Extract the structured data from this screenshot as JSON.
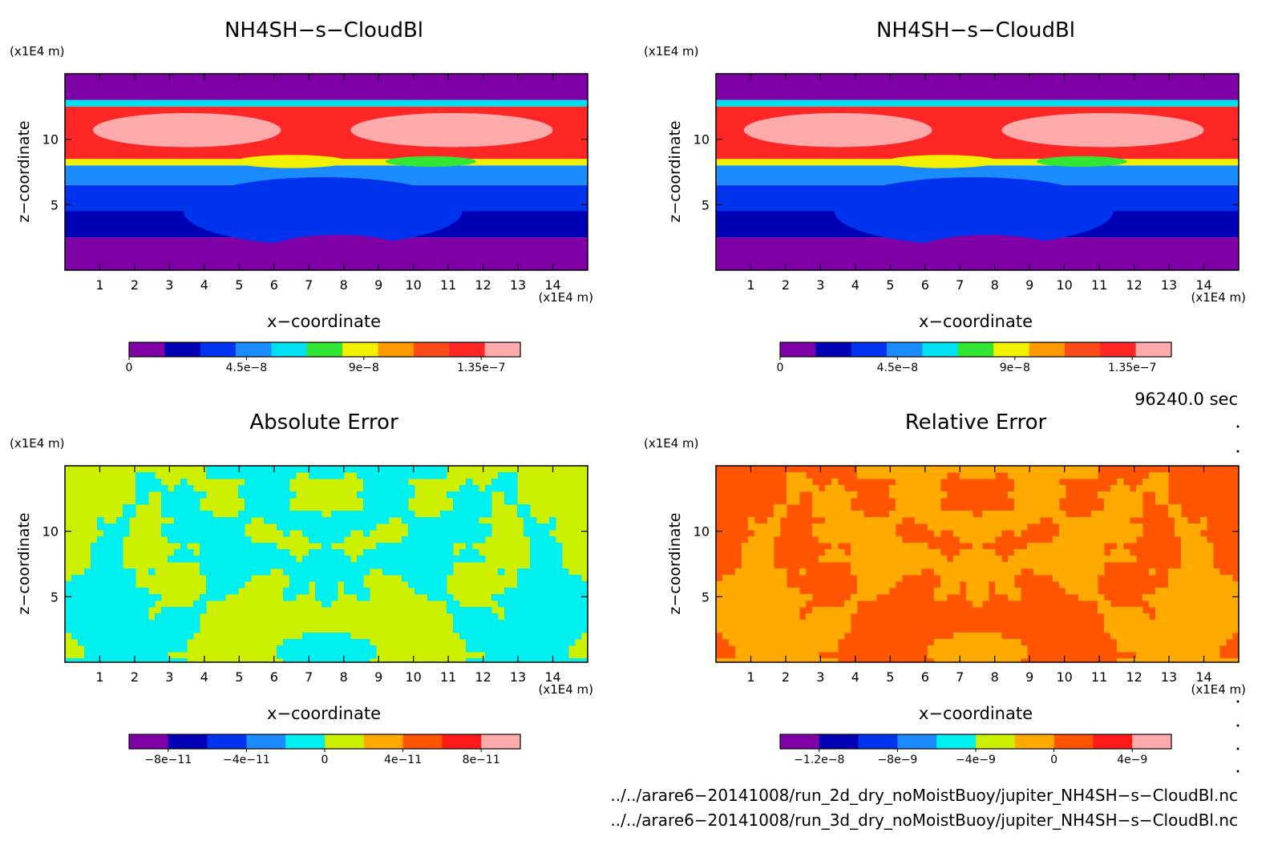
{
  "panels": [
    {
      "title": "NH4SH−s−CloudBl",
      "z_unit": "(x1E4 m)",
      "x_unit": "(x1E4 m)",
      "xlabel": "x−coordinate",
      "ylabel": "z−coordinate",
      "colorbar_ticks": [
        "0",
        "4.5e−8",
        "9e−8",
        "1.35e−7"
      ]
    },
    {
      "title": "NH4SH−s−CloudBl",
      "z_unit": "(x1E4 m)",
      "x_unit": "(x1E4 m)",
      "xlabel": "x−coordinate",
      "ylabel": "z−coordinate",
      "colorbar_ticks": [
        "0",
        "4.5e−8",
        "9e−8",
        "1.35e−7"
      ]
    },
    {
      "title": "Absolute Error",
      "z_unit": "(x1E4 m)",
      "x_unit": "(x1E4 m)",
      "xlabel": "x−coordinate",
      "ylabel": "z−coordinate",
      "colorbar_ticks": [
        "−8e−11",
        "−4e−11",
        "0",
        "4e−11",
        "8e−11"
      ]
    },
    {
      "title": "Relative Error",
      "z_unit": "(x1E4 m)",
      "x_unit": "(x1E4 m)",
      "xlabel": "x−coordinate",
      "ylabel": "z−coordinate",
      "colorbar_ticks": [
        "−1.2e−8",
        "−8e−9",
        "−4e−9",
        "0",
        "4e−9"
      ]
    }
  ],
  "time_label": "96240.0 sec",
  "file_paths": [
    "../../arare6−20141008/run_2d_dry_noMoistBuoy/jupiter_NH4SH−s−CloudBl.nc",
    "../../arare6−20141008/run_3d_dry_noMoistBuoy/jupiter_NH4SH−s−CloudBl.nc"
  ],
  "chart_data": [
    {
      "type": "heatmap",
      "title": "NH4SH−s−CloudBl",
      "xlabel": "x−coordinate",
      "ylabel": "z−coordinate",
      "x_unit": "(x1E4 m)",
      "z_unit": "(x1E4 m)",
      "xlim": [
        0,
        15
      ],
      "ylim": [
        0,
        15
      ],
      "x_ticks": [
        1,
        2,
        3,
        4,
        5,
        6,
        7,
        8,
        9,
        10,
        11,
        12,
        13,
        14
      ],
      "y_ticks": [
        5,
        10
      ],
      "colorbar": {
        "levels": 11,
        "range": [
          0,
          1.5e-07
        ],
        "labeled_ticks": [
          0,
          4.5e-08,
          9e-08,
          1.35e-07
        ],
        "colors": [
          "#8000a8",
          "#0000b4",
          "#0033ee",
          "#1a8cff",
          "#00e0f0",
          "#33e633",
          "#f0f000",
          "#ff9900",
          "#ff4a1a",
          "#ff2626",
          "#ffaaaa"
        ]
      },
      "bands": [
        {
          "z_range": [
            0,
            2.5
          ],
          "level": 0
        },
        {
          "z_range": [
            2.5,
            4.5
          ],
          "level": 1
        },
        {
          "z_range": [
            4.5,
            6.5
          ],
          "level": 2
        },
        {
          "z_range": [
            6.5,
            8.0
          ],
          "level": 3
        },
        {
          "z_range": [
            8.0,
            8.5
          ],
          "level": 6
        },
        {
          "z_range": [
            8.5,
            12.5
          ],
          "level": 9
        },
        {
          "z_range": [
            12.5,
            13.0
          ],
          "level": 4
        },
        {
          "z_range": [
            13.0,
            15.0
          ],
          "level": 0
        }
      ]
    },
    {
      "type": "heatmap",
      "title": "NH4SH−s−CloudBl",
      "xlabel": "x−coordinate",
      "ylabel": "z−coordinate",
      "x_unit": "(x1E4 m)",
      "z_unit": "(x1E4 m)",
      "xlim": [
        0,
        15
      ],
      "ylim": [
        0,
        15
      ],
      "x_ticks": [
        1,
        2,
        3,
        4,
        5,
        6,
        7,
        8,
        9,
        10,
        11,
        12,
        13,
        14
      ],
      "y_ticks": [
        5,
        10
      ],
      "colorbar": {
        "levels": 11,
        "range": [
          0,
          1.5e-07
        ],
        "labeled_ticks": [
          0,
          4.5e-08,
          9e-08,
          1.35e-07
        ],
        "colors": [
          "#8000a8",
          "#0000b4",
          "#0033ee",
          "#1a8cff",
          "#00e0f0",
          "#33e633",
          "#f0f000",
          "#ff9900",
          "#ff4a1a",
          "#ff2626",
          "#ffaaaa"
        ]
      },
      "bands": [
        {
          "z_range": [
            0,
            2.5
          ],
          "level": 0
        },
        {
          "z_range": [
            2.5,
            4.5
          ],
          "level": 1
        },
        {
          "z_range": [
            4.5,
            6.5
          ],
          "level": 2
        },
        {
          "z_range": [
            6.5,
            8.0
          ],
          "level": 3
        },
        {
          "z_range": [
            8.0,
            8.5
          ],
          "level": 6
        },
        {
          "z_range": [
            8.5,
            12.5
          ],
          "level": 9
        },
        {
          "z_range": [
            12.5,
            13.0
          ],
          "level": 4
        },
        {
          "z_range": [
            13.0,
            15.0
          ],
          "level": 0
        }
      ]
    },
    {
      "type": "heatmap",
      "title": "Absolute Error",
      "xlabel": "x−coordinate",
      "ylabel": "z−coordinate",
      "x_unit": "(x1E4 m)",
      "z_unit": "(x1E4 m)",
      "xlim": [
        0,
        15
      ],
      "ylim": [
        0,
        15
      ],
      "x_ticks": [
        1,
        2,
        3,
        4,
        5,
        6,
        7,
        8,
        9,
        10,
        11,
        12,
        13,
        14
      ],
      "y_ticks": [
        5,
        10
      ],
      "colorbar": {
        "levels": 10,
        "range": [
          -1e-10,
          1e-10
        ],
        "labeled_ticks": [
          -8e-11,
          -4e-11,
          0,
          4e-11,
          8e-11
        ],
        "colors": [
          "#8000a8",
          "#0000b4",
          "#0033ee",
          "#1a8cff",
          "#00f0f0",
          "#ccf000",
          "#ffaa00",
          "#ff5500",
          "#ff1a1a",
          "#ffaaaa"
        ]
      },
      "dominant_levels": [
        4,
        5
      ]
    },
    {
      "type": "heatmap",
      "title": "Relative Error",
      "xlabel": "x−coordinate",
      "ylabel": "z−coordinate",
      "x_unit": "(x1E4 m)",
      "z_unit": "(x1E4 m)",
      "xlim": [
        0,
        15
      ],
      "ylim": [
        0,
        15
      ],
      "x_ticks": [
        1,
        2,
        3,
        4,
        5,
        6,
        7,
        8,
        9,
        10,
        11,
        12,
        13,
        14
      ],
      "y_ticks": [
        5,
        10
      ],
      "colorbar": {
        "levels": 10,
        "range": [
          -1.4e-08,
          6e-09
        ],
        "labeled_ticks": [
          -1.2e-08,
          -8e-09,
          -4e-09,
          0,
          4e-09
        ],
        "colors": [
          "#8000a8",
          "#0000b4",
          "#0033ee",
          "#1a8cff",
          "#00f0f0",
          "#ccf000",
          "#ffaa00",
          "#ff5500",
          "#ff1a1a",
          "#ffaaaa"
        ]
      },
      "dominant_levels": [
        6,
        7
      ]
    }
  ]
}
